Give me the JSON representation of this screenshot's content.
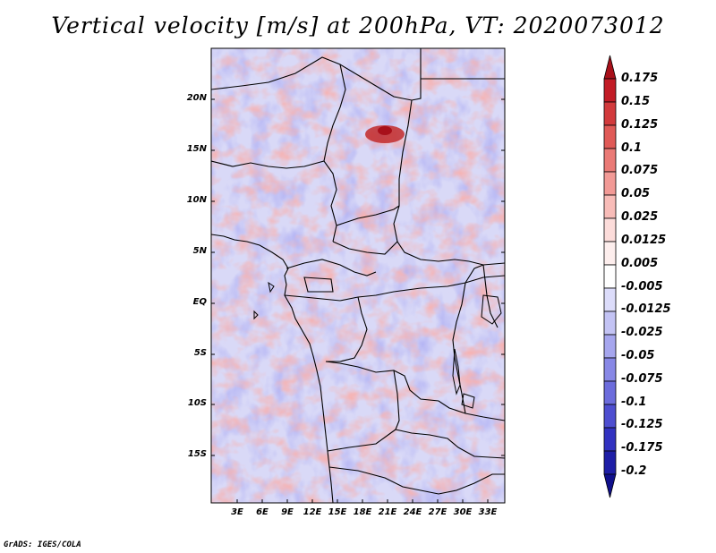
{
  "title": "Vertical velocity [m/s] at 200hPa, VT: 2020073012",
  "credit": "GrADS: IGES/COLA",
  "lat_labels": [
    "20N",
    "15N",
    "10N",
    "5N",
    "EQ",
    "5S",
    "10S",
    "15S"
  ],
  "lon_labels": [
    "3E",
    "6E",
    "9E",
    "12E",
    "15E",
    "18E",
    "21E",
    "24E",
    "27E",
    "30E",
    "33E"
  ],
  "colorbar": {
    "levels": [
      "0.175",
      "0.15",
      "0.125",
      "0.1",
      "0.075",
      "0.05",
      "0.025",
      "0.0125",
      "0.005",
      "-0.005",
      "-0.0125",
      "-0.025",
      "-0.05",
      "-0.075",
      "-0.1",
      "-0.125",
      "-0.175",
      "-0.2"
    ],
    "colors": [
      "#a8101a",
      "#c21c26",
      "#d23a3c",
      "#e05a57",
      "#ea7a76",
      "#f29a96",
      "#f8bcb8",
      "#fcdcda",
      "#fdeeed",
      "#ffffff",
      "#dcdcfa",
      "#c3c3f4",
      "#a6a6ee",
      "#8888e6",
      "#6c6cdc",
      "#4e4ed0",
      "#3232c0",
      "#1e1ea6",
      "#10108c"
    ]
  }
}
